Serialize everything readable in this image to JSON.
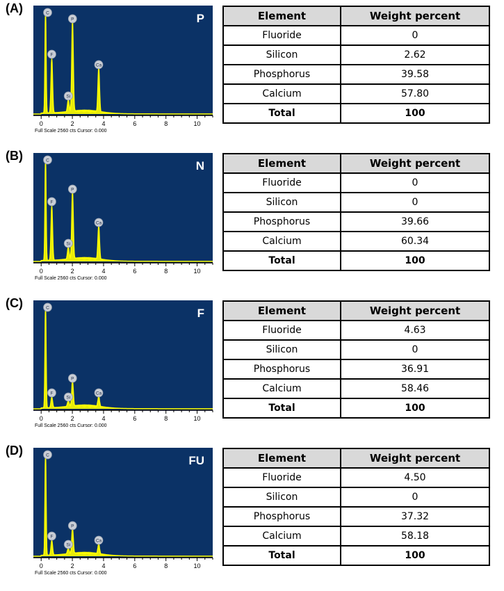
{
  "caption": "Full Scale 2560 cts Cursor: 0.000",
  "table_header": {
    "element": "Element",
    "weight": "Weight percent"
  },
  "colors": {
    "plot_bg": "#0b3266",
    "spectrum": "#ffff00",
    "axis": "#000000"
  },
  "chart_data": [
    {
      "type": "line",
      "panel_label": "(A)",
      "sample": "P",
      "x_ticks": [
        0,
        2,
        4,
        6,
        8,
        10
      ],
      "xlim": [
        -0.5,
        11
      ],
      "peaks": [
        {
          "label": "C",
          "x": 0.28,
          "y": 1.0
        },
        {
          "label": "F",
          "x": 0.68,
          "y": 0.52
        },
        {
          "label": "Si",
          "x": 1.74,
          "y": 0.12
        },
        {
          "label": "P",
          "x": 2.01,
          "y": 0.86
        },
        {
          "label": "Ca",
          "x": 3.69,
          "y": 0.42
        }
      ],
      "table": [
        {
          "element": "Fluoride",
          "value": "0"
        },
        {
          "element": "Silicon",
          "value": "2.62"
        },
        {
          "element": "Phosphorus",
          "value": "39.58"
        },
        {
          "element": "Calcium",
          "value": "57.80"
        },
        {
          "element": "Total",
          "value": "100"
        }
      ]
    },
    {
      "type": "line",
      "panel_label": "(B)",
      "sample": "N",
      "x_ticks": [
        0,
        2,
        4,
        6,
        8,
        10
      ],
      "xlim": [
        -0.5,
        11
      ],
      "peaks": [
        {
          "label": "C",
          "x": 0.28,
          "y": 1.0
        },
        {
          "label": "F",
          "x": 0.68,
          "y": 0.52
        },
        {
          "label": "Si",
          "x": 1.74,
          "y": 0.12
        },
        {
          "label": "P",
          "x": 2.01,
          "y": 0.64
        },
        {
          "label": "Ca",
          "x": 3.69,
          "y": 0.32
        }
      ],
      "table": [
        {
          "element": "Fluoride",
          "value": "0"
        },
        {
          "element": "Silicon",
          "value": "0"
        },
        {
          "element": "Phosphorus",
          "value": "39.66"
        },
        {
          "element": "Calcium",
          "value": "60.34"
        },
        {
          "element": "Total",
          "value": "100"
        }
      ]
    },
    {
      "type": "line",
      "panel_label": "(C)",
      "sample": "F",
      "x_ticks": [
        0,
        2,
        4,
        6,
        8,
        10
      ],
      "xlim": [
        -0.5,
        11
      ],
      "peaks": [
        {
          "label": "C",
          "x": 0.28,
          "y": 1.0
        },
        {
          "label": "F",
          "x": 0.68,
          "y": 0.1
        },
        {
          "label": "Si",
          "x": 1.74,
          "y": 0.06
        },
        {
          "label": "P",
          "x": 2.01,
          "y": 0.24
        },
        {
          "label": "Ca",
          "x": 3.69,
          "y": 0.1
        }
      ],
      "table": [
        {
          "element": "Fluoride",
          "value": "4.63"
        },
        {
          "element": "Silicon",
          "value": "0"
        },
        {
          "element": "Phosphorus",
          "value": "36.91"
        },
        {
          "element": "Calcium",
          "value": "58.46"
        },
        {
          "element": "Total",
          "value": "100"
        }
      ]
    },
    {
      "type": "line",
      "panel_label": "(D)",
      "sample": "FU",
      "x_ticks": [
        0,
        2,
        4,
        6,
        8,
        10
      ],
      "xlim": [
        -0.5,
        11
      ],
      "peaks": [
        {
          "label": "C",
          "x": 0.28,
          "y": 1.0
        },
        {
          "label": "F",
          "x": 0.68,
          "y": 0.14
        },
        {
          "label": "Si",
          "x": 1.74,
          "y": 0.06
        },
        {
          "label": "P",
          "x": 2.01,
          "y": 0.24
        },
        {
          "label": "Ca",
          "x": 3.69,
          "y": 0.1
        }
      ],
      "table": [
        {
          "element": "Fluoride",
          "value": "4.50"
        },
        {
          "element": "Silicon",
          "value": "0"
        },
        {
          "element": "Phosphorus",
          "value": "37.32"
        },
        {
          "element": "Calcium",
          "value": "58.18"
        },
        {
          "element": "Total",
          "value": "100"
        }
      ]
    }
  ]
}
